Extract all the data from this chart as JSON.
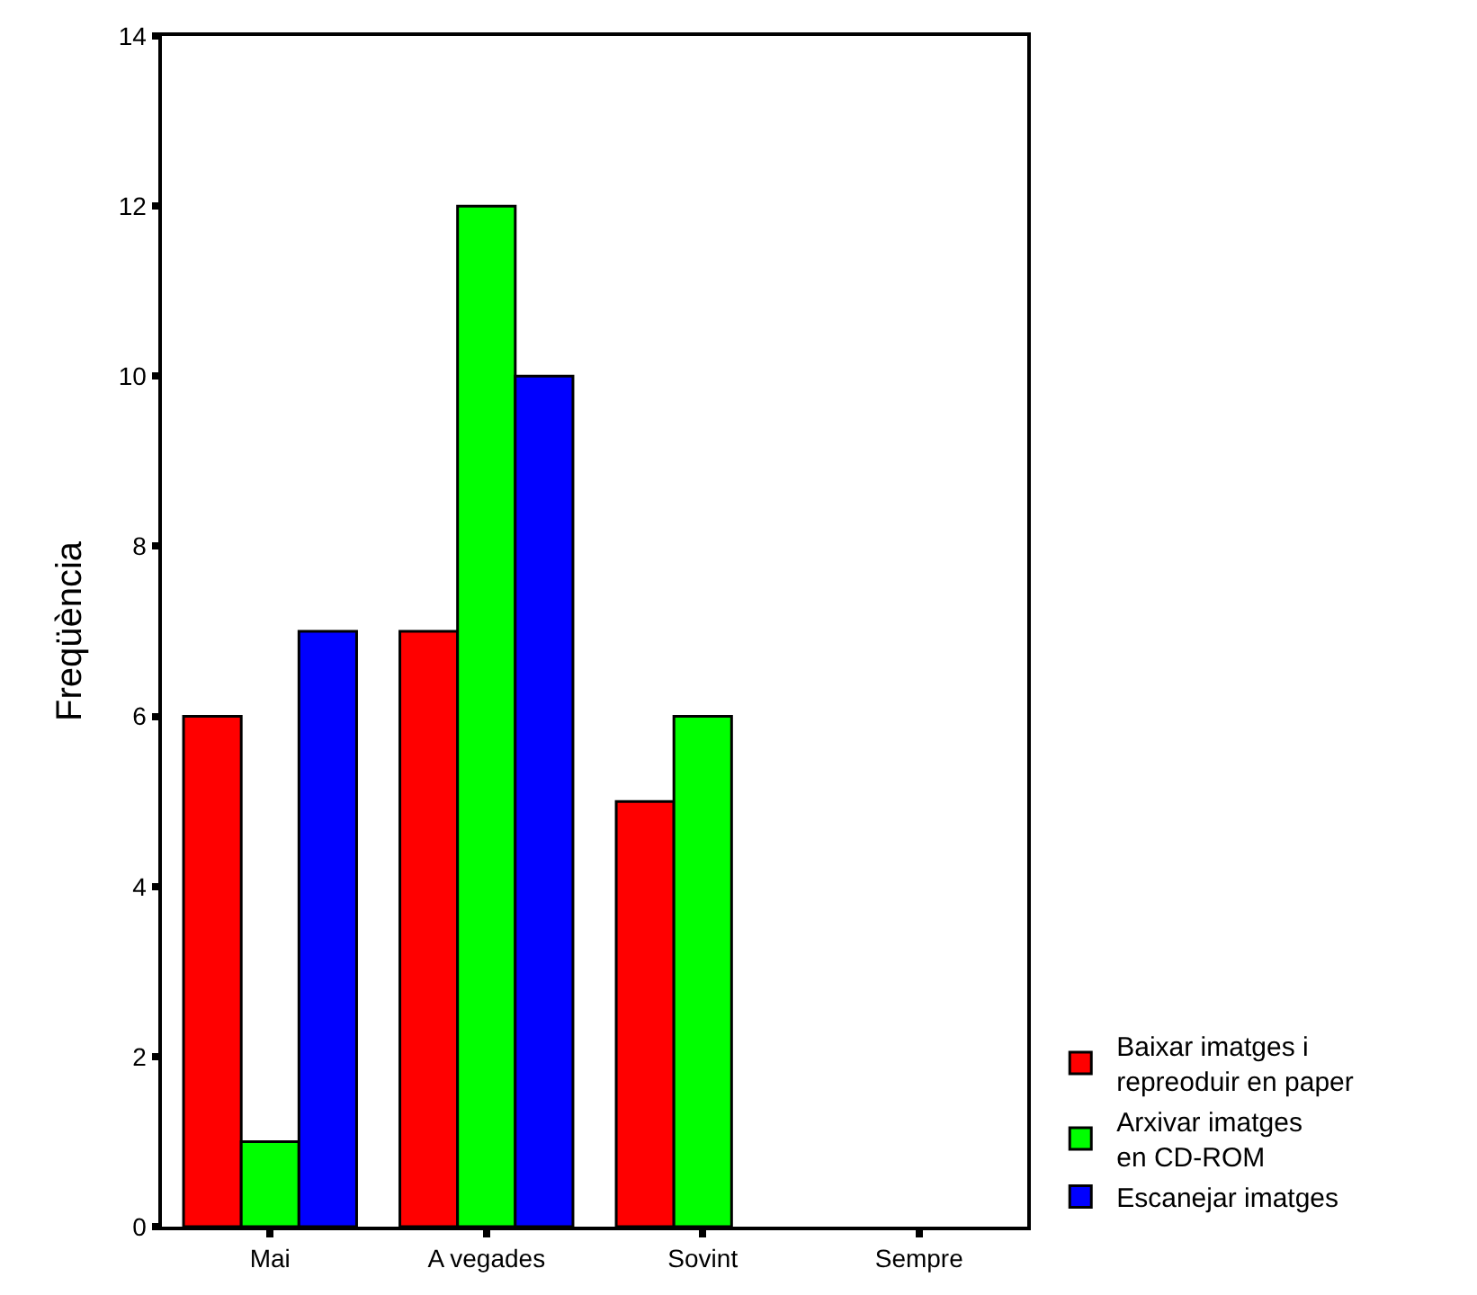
{
  "chart_data": {
    "type": "bar",
    "ylabel": "Freqüència",
    "categories": [
      "Mai",
      "A vegades",
      "Sovint",
      "Sempre"
    ],
    "series": [
      {
        "name": "Baixar imatges i\nrepreoduir en paper",
        "color": "#ff0000",
        "values": [
          6,
          7,
          5,
          null
        ]
      },
      {
        "name": "Arxivar imatges\nen CD-ROM",
        "color": "#00ff00",
        "values": [
          1,
          12,
          6,
          null
        ]
      },
      {
        "name": "Escanejar imatges",
        "color": "#0000ff",
        "values": [
          7,
          10,
          null,
          null
        ]
      }
    ],
    "ylim": [
      0,
      14
    ],
    "yticks": [
      0,
      2,
      4,
      6,
      8,
      10,
      12,
      14
    ],
    "legend": "bottom right"
  }
}
